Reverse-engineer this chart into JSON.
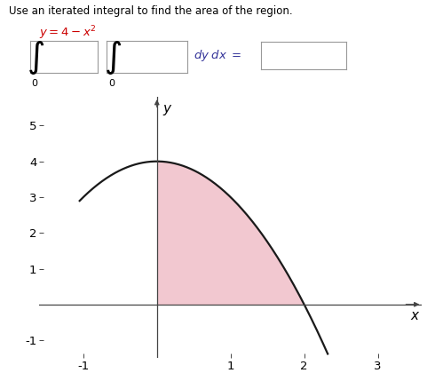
{
  "title": "Use an iterated integral to find the area of the region.",
  "equation_color": "#cc0000",
  "x_start": 0,
  "x_end": 2,
  "curve_x_start": -1.05,
  "curve_x_end": 2.32,
  "fill_color": "#f2c8d0",
  "curve_color": "#1a1a1a",
  "curve_linewidth": 1.6,
  "xlim": [
    -1.6,
    3.6
  ],
  "ylim": [
    -1.5,
    5.8
  ],
  "xticks": [
    -1,
    1,
    2,
    3
  ],
  "yticks": [
    -1,
    1,
    2,
    3,
    4,
    5
  ],
  "xlabel": "x",
  "ylabel": "y",
  "axis_color": "#444444",
  "tick_label_fontsize": 9.5,
  "axis_label_fontsize": 11,
  "fig_width": 4.9,
  "fig_height": 4.2,
  "dpi": 100
}
